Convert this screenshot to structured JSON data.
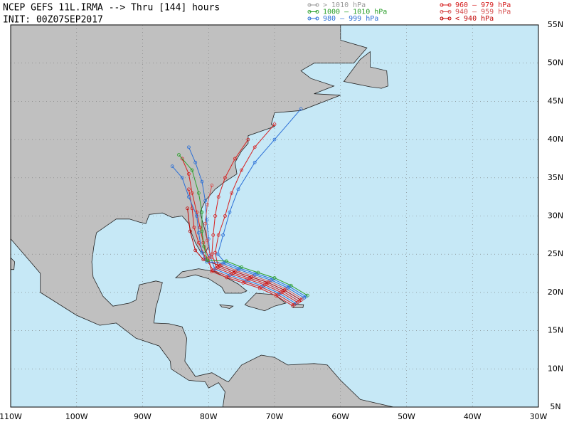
{
  "header": {
    "title": "NCEP GEFS 11L.IRMA --> Thru [144] hours",
    "init": "INIT: 00Z07SEP2017"
  },
  "legend": [
    {
      "label": "> 1010 hPa",
      "color": "#999999"
    },
    {
      "label": "1000 – 1010 hPa",
      "color": "#2ca02c"
    },
    {
      "label": "980 – 999 hPa",
      "color": "#2b6fd6"
    },
    {
      "label": "960 – 979 hPa",
      "color": "#d62020"
    },
    {
      "label": "940 – 959 hPa",
      "color": "#d65050"
    },
    {
      "label": "< 940 hPa",
      "color": "#c00000"
    }
  ],
  "map": {
    "lat_labels": [
      "55N",
      "50N",
      "45N",
      "40N",
      "35N",
      "30N",
      "25N",
      "20N",
      "15N",
      "10N",
      "5N"
    ],
    "lon_labels": [
      "110W",
      "100W",
      "90W",
      "80W",
      "70W",
      "60W",
      "50W",
      "40W",
      "30W"
    ]
  }
}
